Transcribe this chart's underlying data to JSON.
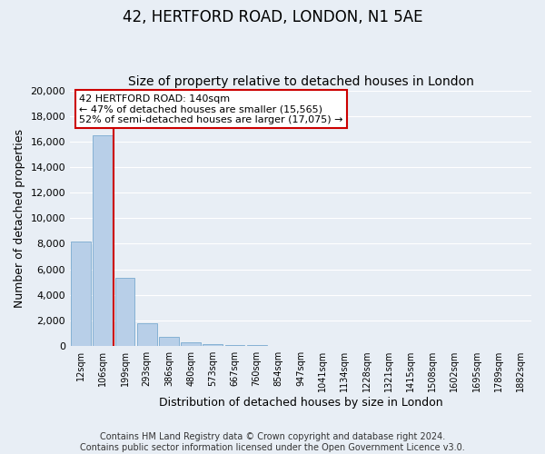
{
  "title": "42, HERTFORD ROAD, LONDON, N1 5AE",
  "subtitle": "Size of property relative to detached houses in London",
  "xlabel": "Distribution of detached houses by size in London",
  "ylabel": "Number of detached properties",
  "bar_labels": [
    "12sqm",
    "106sqm",
    "199sqm",
    "293sqm",
    "386sqm",
    "480sqm",
    "573sqm",
    "667sqm",
    "760sqm",
    "854sqm",
    "947sqm",
    "1041sqm",
    "1134sqm",
    "1228sqm",
    "1321sqm",
    "1415sqm",
    "1508sqm",
    "1602sqm",
    "1695sqm",
    "1789sqm",
    "1882sqm"
  ],
  "bar_values": [
    8200,
    16500,
    5300,
    1750,
    750,
    300,
    150,
    100,
    60,
    0,
    0,
    0,
    0,
    0,
    0,
    0,
    0,
    0,
    0,
    0,
    0
  ],
  "bar_color": "#b8cfe8",
  "bar_edge_color": "#7aaacf",
  "ylim": [
    0,
    20000
  ],
  "yticks": [
    0,
    2000,
    4000,
    6000,
    8000,
    10000,
    12000,
    14000,
    16000,
    18000,
    20000
  ],
  "property_line_x": 1.47,
  "annotation_title": "42 HERTFORD ROAD: 140sqm",
  "annotation_line1": "← 47% of detached houses are smaller (15,565)",
  "annotation_line2": "52% of semi-detached houses are larger (17,075) →",
  "annotation_box_color": "#cc0000",
  "annotation_box_facecolor": "#ffffff",
  "footer1": "Contains HM Land Registry data © Crown copyright and database right 2024.",
  "footer2": "Contains public sector information licensed under the Open Government Licence v3.0.",
  "background_color": "#e8eef5",
  "plot_bg_color": "#e8eef5",
  "grid_color": "#ffffff",
  "title_fontsize": 12,
  "subtitle_fontsize": 10,
  "footer_fontsize": 7
}
